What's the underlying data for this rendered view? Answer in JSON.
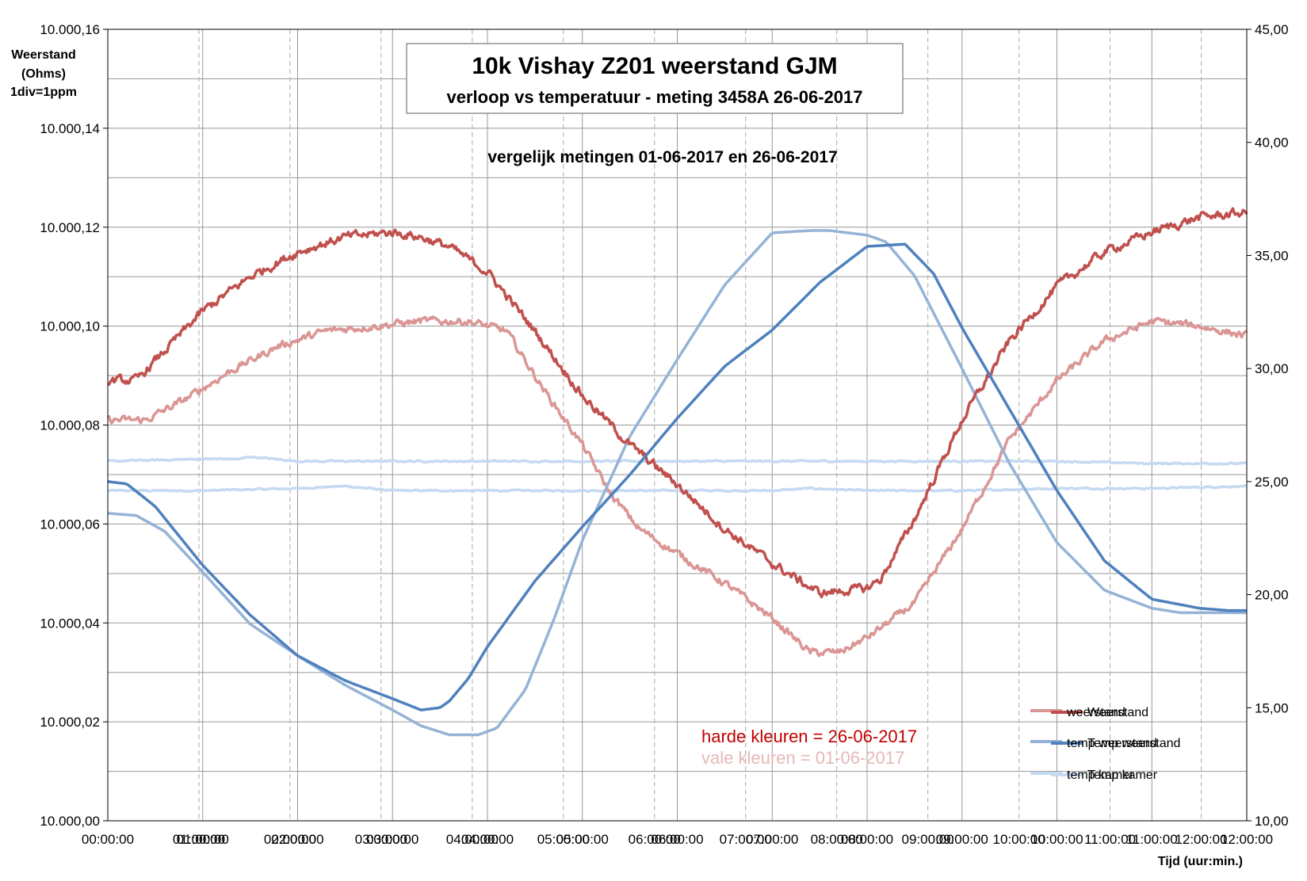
{
  "chart_data": {
    "type": "line",
    "title": "10k Vishay  Z201 weerstand GJM",
    "subtitle": "verloop vs temperatuur  - meting 3458A 26-06-2017",
    "annotation": "vergelijk metingen 01-06-2017 en 26-06-2017",
    "ylabel_lines": [
      "Weerstand",
      "(Ohms)",
      "1div=1ppm"
    ],
    "xlabel": "Tijd (uur:min.)",
    "y_ticks": [
      "10.000,00",
      "10.000,02",
      "10.000,04",
      "10.000,06",
      "10.000,08",
      "10.000,10",
      "10.000,12",
      "10.000,14",
      "10.000,16"
    ],
    "y2_ticks": [
      "10,00",
      "15,00",
      "20,00",
      "25,00",
      "30,00",
      "35,00",
      "40,00",
      "45,00"
    ],
    "x_ticks": [
      "00:00:00",
      "01:00:00",
      "02:00:00",
      "03:00:00",
      "04:00:00",
      "05:00:00",
      "06:00:00",
      "07:00:00",
      "08:00:00",
      "09:00:00",
      "10:00:00",
      "11:00:00",
      "12:00:00"
    ],
    "x_ticks_old": [
      "01:00:00",
      "02:00:00",
      "03:00:00",
      "04:00:00",
      "05:00:00",
      "06:00:00",
      "07:00:00",
      "08:00:00",
      "09:00:00",
      "10:00:00",
      "11:00:00",
      "12:00:00"
    ],
    "ylim": [
      10000.0,
      10000.16
    ],
    "y2lim": [
      10,
      45
    ],
    "xlim": [
      0,
      12
    ],
    "note_hard": "harde kleuren = 26-06-2017",
    "note_pale": "vale kleuren   = 01-06-2017",
    "legend": [
      {
        "new": "Weerstand",
        "old": "weerstand"
      },
      {
        "new": "Temp weerstand",
        "old": "temp weerstand"
      },
      {
        "new": "Temp kamer",
        "old": "temp kamer"
      }
    ],
    "legend_placement": "bottom-right",
    "grid": true,
    "colors": {
      "weerstand_new": "#c0504d",
      "weerstand_old": "#da9694",
      "temp_res_new": "#4f81bd",
      "temp_res_old": "#95b3d7",
      "temp_room_new": "#c5d9f1",
      "temp_room_old": "#c5d9f1",
      "note_hard": "#c00000",
      "note_pale": "#e6b8b7"
    },
    "series": [
      {
        "key": "weerstand_new",
        "axis": "left",
        "noise": 0.0014,
        "x": [
          0,
          0.3,
          0.6,
          1.0,
          1.5,
          2.0,
          2.5,
          3.0,
          3.3,
          3.6,
          4.0,
          4.5,
          5.0,
          5.5,
          6.0,
          6.5,
          7.0,
          7.5,
          8.0,
          8.15,
          8.5,
          9.0,
          9.5,
          10.0,
          10.5,
          11.0,
          11.5,
          12.0
        ],
        "y": [
          10000.089,
          10000.089,
          10000.095,
          10000.103,
          10000.11,
          10000.115,
          10000.118,
          10000.119,
          10000.118,
          10000.116,
          10000.111,
          10000.099,
          10000.086,
          10000.076,
          10000.068,
          10000.059,
          10000.052,
          10000.046,
          10000.047,
          10000.049,
          10000.061,
          10000.081,
          10000.097,
          10000.108,
          10000.115,
          10000.119,
          10000.122,
          10000.123
        ]
      },
      {
        "key": "weerstand_old",
        "axis": "left",
        "noise": 0.0012,
        "x": [
          0,
          0.4,
          0.8,
          1.3,
          1.8,
          2.3,
          2.8,
          3.3,
          3.8,
          4.2,
          4.6,
          5.0,
          5.3,
          5.6,
          6.0,
          6.5,
          7.0,
          7.4,
          7.7,
          8.0,
          8.5,
          9.0,
          9.5,
          10.0,
          10.5,
          11.0,
          11.5,
          12.0
        ],
        "y": [
          10000.081,
          10000.081,
          10000.085,
          10000.091,
          10000.096,
          10000.099,
          10000.1,
          10000.101,
          10000.101,
          10000.099,
          10000.087,
          10000.076,
          10000.066,
          10000.059,
          10000.054,
          10000.048,
          10000.041,
          10000.034,
          10000.034,
          10000.037,
          10000.044,
          10000.059,
          10000.077,
          10000.089,
          10000.097,
          10000.101,
          10000.1,
          10000.098
        ]
      },
      {
        "key": "temp_res_new",
        "axis": "right",
        "noise": 0,
        "x": [
          0,
          0.2,
          0.5,
          1.0,
          1.5,
          2.0,
          2.5,
          3.0,
          3.3,
          3.5,
          3.6,
          3.8,
          4.0,
          4.5,
          5.0,
          5.5,
          6.0,
          6.5,
          7.0,
          7.5,
          8.0,
          8.4,
          8.7,
          9.0,
          9.5,
          10.0,
          10.5,
          11.0,
          11.5,
          11.8,
          12.0
        ],
        "y": [
          25.0,
          24.9,
          23.9,
          21.3,
          19.1,
          17.3,
          16.2,
          15.4,
          14.9,
          15.0,
          15.3,
          16.3,
          17.7,
          20.6,
          23.0,
          25.3,
          27.8,
          30.1,
          31.7,
          33.8,
          35.4,
          35.5,
          34.2,
          31.8,
          28.2,
          24.6,
          21.5,
          19.8,
          19.4,
          19.3,
          19.3
        ]
      },
      {
        "key": "temp_res_old",
        "axis": "right",
        "noise": 0,
        "x": [
          0,
          0.3,
          0.6,
          1.0,
          1.5,
          2.0,
          2.5,
          3.0,
          3.3,
          3.6,
          3.9,
          4.1,
          4.4,
          4.7,
          5.0,
          5.5,
          6.0,
          6.5,
          7.0,
          7.4,
          7.6,
          7.8,
          8.0,
          8.2,
          8.5,
          9.0,
          9.5,
          10.0,
          10.5,
          11.0,
          11.3,
          11.6,
          12.0
        ],
        "y": [
          23.6,
          23.5,
          22.8,
          21.0,
          18.7,
          17.3,
          16.0,
          14.9,
          14.2,
          13.8,
          13.8,
          14.1,
          15.8,
          18.9,
          22.4,
          27.0,
          30.4,
          33.7,
          36.0,
          36.1,
          36.1,
          36.0,
          35.9,
          35.6,
          34.1,
          30.0,
          25.8,
          22.3,
          20.2,
          19.4,
          19.2,
          19.2,
          19.2
        ]
      },
      {
        "key": "temp_room_new",
        "axis": "right",
        "noise": 0.05,
        "x": [
          0,
          1,
          1.4,
          1.5,
          2,
          3,
          4,
          5,
          6,
          7,
          7.5,
          8,
          9,
          10,
          11,
          12
        ],
        "y": [
          25.9,
          26.0,
          26.0,
          26.1,
          25.9,
          25.9,
          25.9,
          25.9,
          25.9,
          25.9,
          25.9,
          25.9,
          25.9,
          25.9,
          25.8,
          25.8
        ]
      },
      {
        "key": "temp_room_old",
        "axis": "right",
        "noise": 0.05,
        "x": [
          0,
          1,
          2,
          2.5,
          3,
          4,
          5,
          6,
          7,
          7.4,
          8,
          9,
          10,
          11,
          12
        ],
        "y": [
          24.6,
          24.6,
          24.7,
          24.8,
          24.6,
          24.6,
          24.6,
          24.6,
          24.6,
          24.7,
          24.6,
          24.6,
          24.7,
          24.7,
          24.8
        ]
      }
    ]
  }
}
